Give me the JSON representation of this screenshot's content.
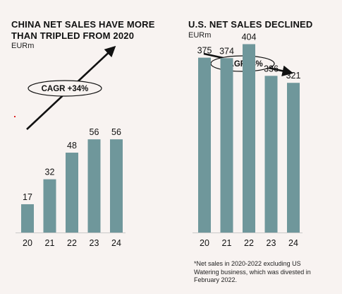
{
  "chart_data": [
    {
      "type": "bar",
      "title": "CHINA NET SALES HAVE MORE THAN TRIPLED FROM 2020",
      "unit": "EURm",
      "categories": [
        "20",
        "21",
        "22",
        "23",
        "24"
      ],
      "values": [
        17,
        32,
        48,
        56,
        56
      ],
      "ylim": [
        0,
        110
      ],
      "grid": false,
      "bar_color": "#6f979b",
      "annotation": "CAGR +34%",
      "trend": "up"
    },
    {
      "type": "bar",
      "title": "U.S. NET SALES DECLINED",
      "unit": "EURm",
      "categories": [
        "20",
        "21",
        "22",
        "23",
        "24"
      ],
      "values": [
        375,
        374,
        404,
        336,
        321
      ],
      "ylim": [
        0,
        720
      ],
      "grid": false,
      "bar_color": "#6f979b",
      "annotation": "CAGR -4%",
      "trend": "down",
      "footnote": "*Net sales in 2020-2022 excluding US Watering business, which was divested in February 2022."
    }
  ],
  "colors": {
    "bar": "#6f979b",
    "background": "#f8f3f1",
    "baseline": "#c9c9c9",
    "text": "#111111"
  }
}
